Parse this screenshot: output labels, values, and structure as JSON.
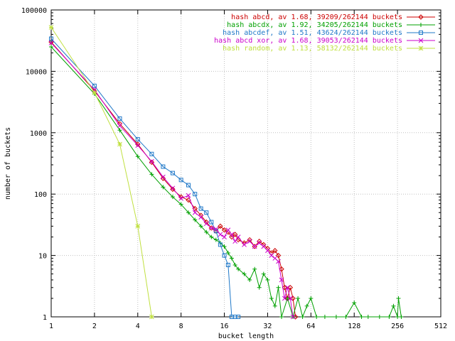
{
  "chart_data": {
    "type": "line",
    "xlabel": "bucket length",
    "ylabel": "number of buckets",
    "x_scale": "log2",
    "y_scale": "log10",
    "xlim": [
      1,
      512
    ],
    "ylim": [
      1,
      100000
    ],
    "x_ticks": [
      1,
      2,
      4,
      8,
      16,
      32,
      64,
      128,
      256,
      512
    ],
    "x_tick_labels": [
      "1",
      "2",
      "4",
      "8",
      "16",
      "32",
      "64",
      "128",
      "256",
      "512"
    ],
    "y_ticks": [
      1,
      10,
      100,
      1000,
      10000,
      100000
    ],
    "y_tick_labels": [
      "1",
      "10",
      "100",
      "1000",
      "10000",
      "100000"
    ],
    "grid": true,
    "legend_position": "top-right",
    "series": [
      {
        "name": "hash abcd, av 1.68, 39209/262144 buckets",
        "color": "#cc0000",
        "marker": "diamond",
        "points": [
          [
            1,
            30000
          ],
          [
            2,
            4800
          ],
          [
            3,
            1400
          ],
          [
            4,
            650
          ],
          [
            5,
            330
          ],
          [
            6,
            180
          ],
          [
            7,
            120
          ],
          [
            8,
            90
          ],
          [
            9,
            80
          ],
          [
            10,
            58
          ],
          [
            11,
            45
          ],
          [
            12,
            35
          ],
          [
            13,
            28
          ],
          [
            14,
            25
          ],
          [
            15,
            30
          ],
          [
            16,
            26
          ],
          [
            17,
            24
          ],
          [
            18,
            20
          ],
          [
            19,
            22
          ],
          [
            20,
            18
          ],
          [
            22,
            16
          ],
          [
            24,
            18
          ],
          [
            26,
            14
          ],
          [
            28,
            17
          ],
          [
            30,
            15
          ],
          [
            32,
            13
          ],
          [
            34,
            11
          ],
          [
            36,
            12
          ],
          [
            38,
            10
          ],
          [
            40,
            6
          ],
          [
            42,
            3
          ],
          [
            44,
            2
          ],
          [
            46,
            3
          ],
          [
            48,
            2
          ],
          [
            50,
            1
          ]
        ]
      },
      {
        "name": "hash abcdx, av 1.92, 34205/262144 buckets",
        "color": "#00a000",
        "marker": "plus",
        "points": [
          [
            1,
            25000
          ],
          [
            2,
            4300
          ],
          [
            3,
            1100
          ],
          [
            4,
            410
          ],
          [
            5,
            210
          ],
          [
            6,
            130
          ],
          [
            7,
            90
          ],
          [
            8,
            68
          ],
          [
            9,
            50
          ],
          [
            10,
            38
          ],
          [
            11,
            30
          ],
          [
            12,
            24
          ],
          [
            13,
            20
          ],
          [
            14,
            18
          ],
          [
            15,
            16
          ],
          [
            16,
            14
          ],
          [
            17,
            11
          ],
          [
            18,
            9
          ],
          [
            19,
            7
          ],
          [
            20,
            6
          ],
          [
            22,
            5
          ],
          [
            24,
            4
          ],
          [
            26,
            6
          ],
          [
            28,
            3
          ],
          [
            30,
            5
          ],
          [
            32,
            4
          ],
          [
            34,
            2
          ],
          [
            36,
            1.5
          ],
          [
            38,
            3
          ],
          [
            40,
            1
          ],
          [
            44,
            2
          ],
          [
            48,
            1
          ],
          [
            52,
            2
          ],
          [
            56,
            1
          ],
          [
            60,
            1.5
          ],
          [
            64,
            2
          ],
          [
            70,
            1
          ],
          [
            80,
            1
          ],
          [
            96,
            1
          ],
          [
            112,
            1
          ],
          [
            128,
            1.7
          ],
          [
            144,
            1
          ],
          [
            160,
            1
          ],
          [
            192,
            1
          ],
          [
            224,
            1
          ],
          [
            240,
            1.5
          ],
          [
            256,
            1
          ],
          [
            260,
            2
          ],
          [
            272,
            1
          ]
        ]
      },
      {
        "name": "hash abcdef, av 1.51, 43624/262144 buckets",
        "color": "#1f78c8",
        "marker": "square",
        "points": [
          [
            1,
            34000
          ],
          [
            2,
            5800
          ],
          [
            3,
            1700
          ],
          [
            4,
            780
          ],
          [
            5,
            450
          ],
          [
            6,
            280
          ],
          [
            7,
            220
          ],
          [
            8,
            170
          ],
          [
            9,
            140
          ],
          [
            10,
            100
          ],
          [
            11,
            58
          ],
          [
            12,
            50
          ],
          [
            13,
            35
          ],
          [
            14,
            25
          ],
          [
            15,
            15
          ],
          [
            16,
            10
          ],
          [
            17,
            7
          ],
          [
            18,
            1
          ],
          [
            19,
            1
          ],
          [
            20,
            1
          ]
        ]
      },
      {
        "name": "hash abcd xor, av 1.68, 39053/262144 buckets",
        "color": "#cc00cc",
        "marker": "cross",
        "points": [
          [
            1,
            29000
          ],
          [
            2,
            5000
          ],
          [
            3,
            1300
          ],
          [
            4,
            620
          ],
          [
            5,
            340
          ],
          [
            6,
            190
          ],
          [
            7,
            125
          ],
          [
            8,
            85
          ],
          [
            9,
            95
          ],
          [
            10,
            50
          ],
          [
            11,
            42
          ],
          [
            12,
            33
          ],
          [
            13,
            28
          ],
          [
            14,
            27
          ],
          [
            15,
            22
          ],
          [
            16,
            20
          ],
          [
            17,
            26
          ],
          [
            18,
            22
          ],
          [
            19,
            17
          ],
          [
            20,
            20
          ],
          [
            22,
            15
          ],
          [
            24,
            17
          ],
          [
            26,
            14
          ],
          [
            28,
            16
          ],
          [
            30,
            14
          ],
          [
            32,
            12
          ],
          [
            34,
            10
          ],
          [
            36,
            9
          ],
          [
            38,
            8
          ],
          [
            40,
            4
          ],
          [
            42,
            2
          ],
          [
            44,
            3
          ],
          [
            46,
            2
          ],
          [
            48,
            1
          ]
        ]
      },
      {
        "name": "hash random, av 1.13, 58132/262144 buckets",
        "color": "#c0e040",
        "marker": "star",
        "points": [
          [
            1,
            52000
          ],
          [
            2,
            4500
          ],
          [
            3,
            650
          ],
          [
            4,
            30
          ],
          [
            5,
            1
          ]
        ]
      }
    ]
  }
}
